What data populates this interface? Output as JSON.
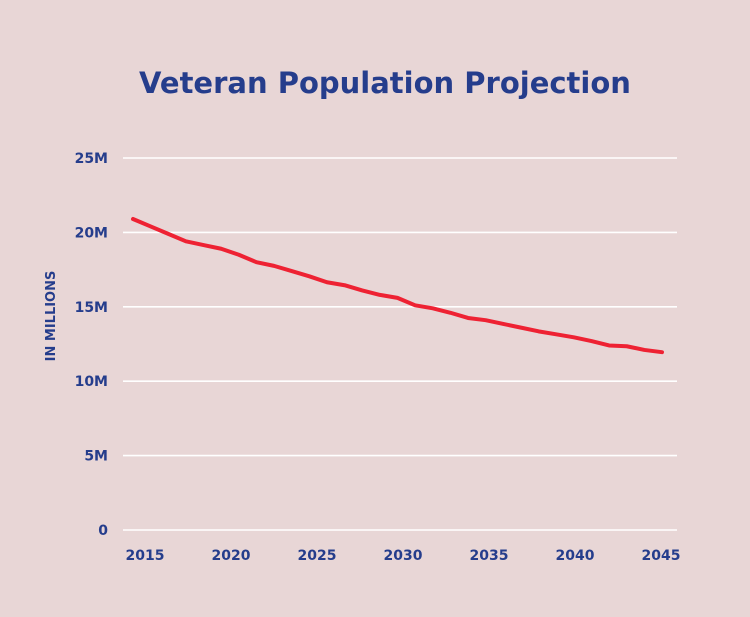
{
  "chart_data": {
    "type": "line",
    "title": "Veteran Population Projection",
    "xlabel": "",
    "ylabel": "IN MILLIONS",
    "ylim": [
      0,
      25
    ],
    "xlim": [
      2015,
      2045
    ],
    "grid": true,
    "y_ticks": [
      0,
      5,
      10,
      15,
      20,
      25
    ],
    "y_tick_labels": [
      "0",
      "5M",
      "10M",
      "15M",
      "20M",
      "25M"
    ],
    "x_ticks": [
      2015,
      2020,
      2025,
      2030,
      2035,
      2040,
      2045
    ],
    "x_tick_labels": [
      "2015",
      "2020",
      "2025",
      "2030",
      "2035",
      "2040",
      "2045"
    ],
    "x": [
      2015,
      2016,
      2017,
      2018,
      2019,
      2020,
      2021,
      2022,
      2023,
      2024,
      2025,
      2026,
      2027,
      2028,
      2029,
      2030,
      2031,
      2032,
      2033,
      2034,
      2035,
      2036,
      2037,
      2038,
      2039,
      2040,
      2041,
      2042,
      2043,
      2044,
      2045
    ],
    "series": [
      {
        "values": [
          20.9,
          20.4,
          19.9,
          19.4,
          19.15,
          18.9,
          18.5,
          18.0,
          17.75,
          17.4,
          17.05,
          16.65,
          16.45,
          16.1,
          15.8,
          15.6,
          15.1,
          14.9,
          14.6,
          14.25,
          14.1,
          13.85,
          13.6,
          13.35,
          13.15,
          12.95,
          12.7,
          12.4,
          12.35,
          12.1,
          11.95
        ]
      }
    ],
    "colors": {
      "background": "#e8d6d6",
      "text": "#253d8c",
      "line": "#ee2233",
      "grid": "#ffffff"
    }
  }
}
